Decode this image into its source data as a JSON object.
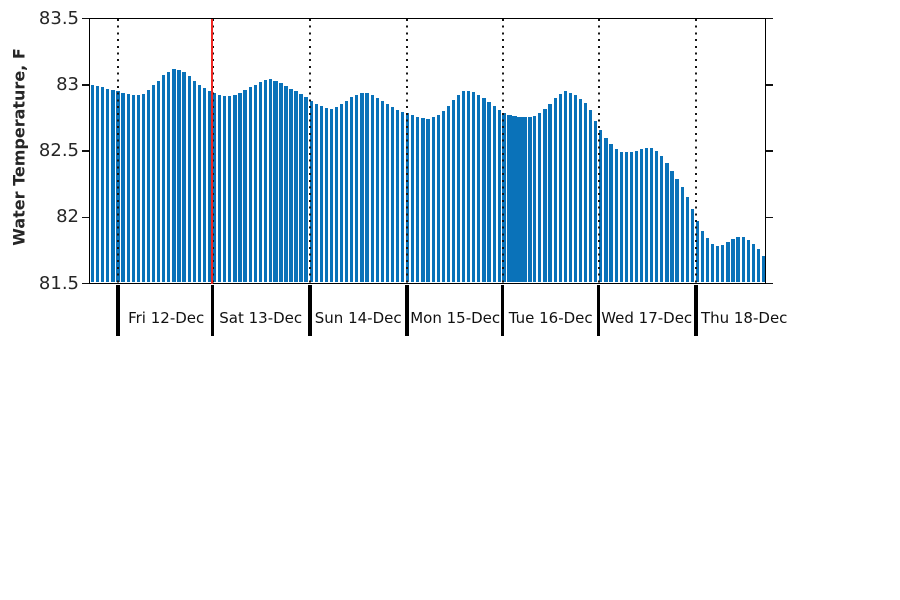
{
  "chart_data": {
    "type": "bar",
    "title": "",
    "xlabel": "",
    "ylabel": "Water Temperature, F",
    "ylim": [
      81.5,
      83.5
    ],
    "y_tick_values": [
      83.5,
      83.0,
      82.5,
      82.0,
      81.5
    ],
    "y_tick_labels": [
      "83.5",
      "83",
      "82.5",
      "82",
      "81.5"
    ],
    "grid": "off",
    "legend": "none",
    "x_day_labels": [
      "Fri 12-Dec",
      "Sat 13-Dec",
      "Sun 14-Dec",
      "Mon 15-Dec",
      "Tue 16-Dec",
      "Wed 17-Dec",
      "Thu 18-Dec"
    ],
    "day_boundary_guides": "dotted-vertical-line-at-each-day-start",
    "red_line_at_day": "Sat 13-Dec",
    "series": [
      {
        "name": "Water Temperature (F)",
        "values": [
          83.0,
          82.99,
          82.98,
          82.97,
          82.96,
          82.95,
          82.94,
          82.93,
          82.92,
          82.92,
          82.93,
          82.96,
          82.995,
          83.03,
          83.07,
          83.1,
          83.12,
          83.115,
          83.095,
          83.065,
          83.03,
          83.0,
          82.975,
          82.95,
          82.935,
          82.925,
          82.915,
          82.915,
          82.925,
          82.94,
          82.96,
          82.98,
          83.0,
          83.02,
          83.035,
          83.04,
          83.03,
          83.01,
          82.99,
          82.97,
          82.95,
          82.93,
          82.91,
          82.88,
          82.855,
          82.84,
          82.825,
          82.82,
          82.835,
          82.855,
          82.88,
          82.905,
          82.925,
          82.94,
          82.935,
          82.92,
          82.9,
          82.88,
          82.855,
          82.83,
          82.81,
          82.795,
          82.785,
          82.775,
          82.76,
          82.75,
          82.745,
          82.755,
          82.775,
          82.8,
          82.84,
          82.885,
          82.925,
          82.95,
          82.955,
          82.945,
          82.925,
          82.9,
          82.87,
          82.84,
          82.81,
          82.785,
          82.77,
          82.765,
          82.76,
          82.755,
          82.755,
          82.765,
          82.785,
          82.815,
          82.855,
          82.9,
          82.93,
          82.95,
          82.94,
          82.92,
          82.895,
          82.86,
          82.81,
          82.73,
          82.655,
          82.6,
          82.55,
          82.515,
          82.495,
          82.49,
          82.49,
          82.5,
          82.515,
          82.525,
          82.52,
          82.5,
          82.46,
          82.41,
          82.35,
          82.29,
          82.23,
          82.15,
          82.06,
          81.97,
          81.9,
          81.84,
          81.8,
          81.78,
          81.79,
          81.81,
          81.835,
          81.85,
          81.85,
          81.83,
          81.8,
          81.76,
          81.71
        ]
      }
    ],
    "dense_ranges": [
      [
        36,
        42
      ],
      [
        81,
        86
      ]
    ],
    "colors": {
      "bar": "#0a72b9",
      "red_line": "#ee2722",
      "guide_dots": "#151515",
      "axis": "#000000",
      "y_tick_text": "#262626",
      "day_label_text": "#111111"
    }
  }
}
